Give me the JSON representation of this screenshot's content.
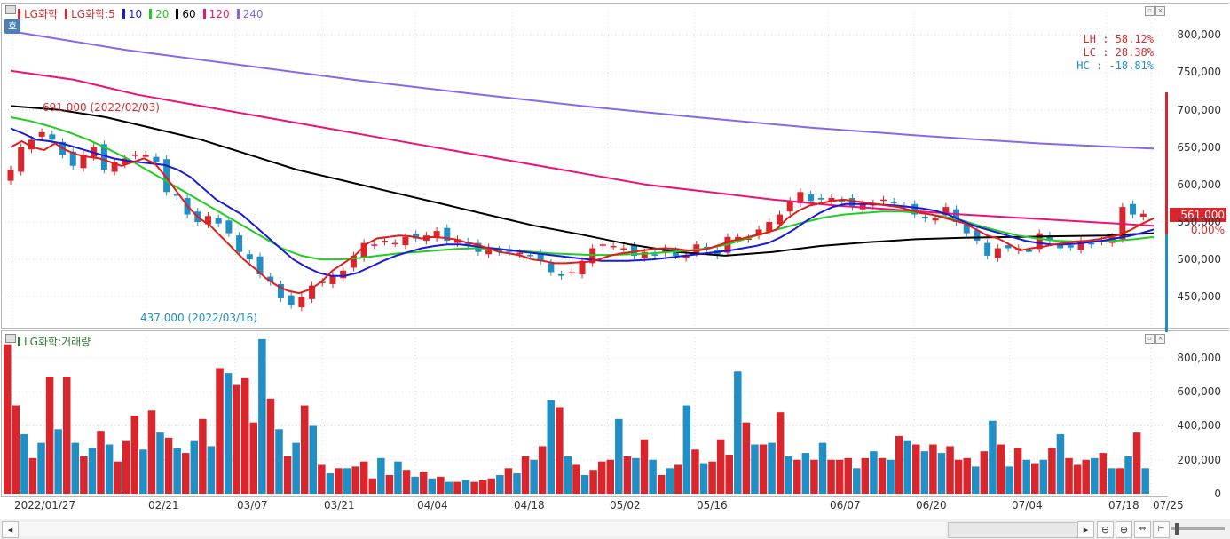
{
  "window": {
    "tab_label": "호",
    "legend_series": [
      {
        "label": "LG화학",
        "color": "#d32f2f"
      },
      {
        "label": "LG화학:5",
        "color": "#d32f2f"
      },
      {
        "label": "10",
        "color": "#1a1adb"
      },
      {
        "label": "20",
        "color": "#22cc22"
      },
      {
        "label": "60",
        "color": "#000000"
      },
      {
        "label": "120",
        "color": "#ee1177"
      },
      {
        "label": "240",
        "color": "#8a66e8"
      }
    ],
    "volume_legend": "LG화학:거래량",
    "stats": {
      "lh": "LH :  58.12%",
      "lc": "LC :  28.38%",
      "hc": "HC : -18.81%"
    },
    "current_price": "561,000",
    "current_change": "0.00%",
    "high_annotation": "691,000 (2022/02/03)",
    "low_annotation": "437,000 (2022/03/16)",
    "colors": {
      "up": "#d8262c",
      "down": "#1f8fc6",
      "background": "#ffffff",
      "grid": "#d9d9d9"
    },
    "scroll_icons": [
      "left-arrow-icon",
      "right-arrow-icon",
      "zoom-out-icon",
      "zoom-in-icon",
      "bar-width-icon",
      "fit-icon"
    ]
  },
  "chart_data": [
    {
      "type": "candlestick",
      "title": "LG화학",
      "y_ticks": [
        "800,000",
        "750,000",
        "700,000",
        "650,000",
        "600,000",
        "550,000",
        "500,000",
        "450,000"
      ],
      "ylim": [
        410000,
        830000
      ],
      "x_ticks": [
        "2022/01/27",
        "02/21",
        "03/07",
        "03/21",
        "04/04",
        "04/18",
        "05/02",
        "05/16",
        "06/07",
        "06/20",
        "07/04",
        "07/18",
        "07/25"
      ],
      "series_names": [
        "LG화학:5",
        "10",
        "20",
        "60",
        "120",
        "240"
      ],
      "close": [
        620000,
        650000,
        660000,
        670000,
        660000,
        640000,
        625000,
        640000,
        650000,
        620000,
        630000,
        635000,
        640000,
        640000,
        630000,
        590000,
        585000,
        560000,
        550000,
        558000,
        548000,
        535000,
        510000,
        500000,
        480000,
        470000,
        448000,
        439000,
        450000,
        465000,
        470000,
        478000,
        485000,
        505000,
        522000,
        520000,
        525000,
        522000,
        530000,
        528000,
        532000,
        538000,
        525000,
        527000,
        518000,
        510000,
        516000,
        510000,
        510000,
        509000,
        505000,
        498000,
        483000,
        478000,
        483000,
        498000,
        515000,
        520000,
        518000,
        515000,
        505000,
        510000,
        505000,
        515000,
        505000,
        505000,
        520000,
        515000,
        505000,
        530000,
        530000,
        528000,
        540000,
        550000,
        560000,
        578000,
        590000,
        578000,
        580000,
        582000,
        578000,
        570000,
        575000,
        575000,
        580000,
        575000,
        570000,
        560000,
        555000,
        555000,
        570000,
        550000,
        535000,
        525000,
        505000,
        515000,
        515000,
        515000,
        510000,
        535000,
        525000,
        515000,
        516000,
        525000,
        520000,
        525000,
        530000,
        570000,
        560000,
        561000
      ],
      "ma5": [
        650000,
        658000,
        650000,
        646000,
        655000,
        646000,
        640000,
        637000,
        635000,
        630000,
        625000,
        630000,
        635000,
        628000,
        610000,
        590000,
        570000,
        555000,
        545000,
        530000,
        515000,
        500000,
        488000,
        475000,
        465000,
        458000,
        455000,
        460000,
        470000,
        485000,
        495000,
        505000,
        520000,
        528000,
        530000,
        532000,
        531000,
        528000,
        530000,
        529000,
        527000,
        523000,
        520000,
        515000,
        510000,
        508000,
        505000,
        500000,
        498000,
        495000,
        495000,
        496000,
        497000,
        500000,
        505000,
        508000,
        510000,
        512000,
        514000,
        515000,
        514000,
        512000,
        512000,
        515000,
        520000,
        525000,
        528000,
        532000,
        535000,
        540000,
        555000,
        565000,
        572000,
        575000,
        578000,
        580000,
        578000,
        576000,
        574000,
        572000,
        570000,
        566000,
        562000,
        560000,
        556000,
        552000,
        548000,
        540000,
        532000,
        528000,
        520000,
        512000,
        515000,
        517000,
        520000,
        522000,
        524000,
        525000,
        527000,
        530000,
        533000,
        540000,
        548000,
        555000
      ],
      "ma10": [
        675000,
        668000,
        660000,
        658000,
        655000,
        650000,
        645000,
        640000,
        635000,
        632000,
        630000,
        628000,
        626000,
        620000,
        610000,
        595000,
        580000,
        570000,
        560000,
        545000,
        530000,
        515000,
        500000,
        490000,
        482000,
        478000,
        478000,
        482000,
        490000,
        498000,
        505000,
        510000,
        515000,
        518000,
        520000,
        520000,
        518000,
        516000,
        514000,
        512000,
        510000,
        508000,
        506000,
        504000,
        502000,
        500000,
        498000,
        498000,
        498000,
        499000,
        500000,
        502000,
        504000,
        506000,
        508000,
        510000,
        512000,
        515000,
        518000,
        522000,
        530000,
        540000,
        552000,
        562000,
        570000,
        574000,
        574000,
        574000,
        573000,
        572000,
        570000,
        568000,
        565000,
        560000,
        552000,
        545000,
        540000,
        535000,
        530000,
        525000,
        522000,
        520000,
        520000,
        521000,
        523000,
        525000,
        528000,
        531000,
        535000,
        540000
      ],
      "ma20": [
        690000,
        685000,
        678000,
        670000,
        660000,
        648000,
        635000,
        620000,
        605000,
        590000,
        575000,
        560000,
        545000,
        530000,
        515000,
        505000,
        500000,
        500000,
        502000,
        505000,
        508000,
        510000,
        512000,
        514000,
        515000,
        514000,
        512000,
        510000,
        508000,
        507000,
        506000,
        506000,
        507000,
        508000,
        510000,
        512000,
        515000,
        520000,
        528000,
        536000,
        543000,
        550000,
        556000,
        560000,
        562000,
        564000,
        564000,
        562000,
        558000,
        553000,
        545000,
        538000,
        532000,
        528000,
        525000,
        524000,
        524000,
        525000,
        527000,
        530000
      ],
      "ma60": [
        705000,
        700000,
        690000,
        675000,
        660000,
        640000,
        620000,
        605000,
        590000,
        575000,
        560000,
        545000,
        533000,
        520000,
        510000,
        505000,
        510000,
        518000,
        523000,
        527000,
        529000,
        530000,
        531000,
        532000,
        535000
      ],
      "ma120": [
        752000,
        740000,
        720000,
        705000,
        690000,
        675000,
        660000,
        645000,
        630000,
        615000,
        600000,
        590000,
        580000,
        572000,
        566000,
        560000,
        555000,
        550000,
        545000
      ],
      "ma240": [
        805000,
        780000,
        760000,
        740000,
        722000,
        705000,
        690000,
        676000,
        665000,
        655000,
        648000
      ]
    },
    {
      "type": "bar",
      "title": "LG화학:거래량",
      "y_ticks": [
        "800,000",
        "600,000",
        "400,000",
        "200,000",
        "0"
      ],
      "ylim": [
        0,
        920000
      ],
      "values": [
        880000,
        520000,
        350000,
        210000,
        300000,
        690000,
        380000,
        690000,
        300000,
        220000,
        270000,
        370000,
        290000,
        190000,
        310000,
        460000,
        260000,
        490000,
        360000,
        330000,
        270000,
        240000,
        310000,
        440000,
        280000,
        740000,
        710000,
        640000,
        680000,
        420000,
        910000,
        560000,
        380000,
        220000,
        300000,
        520000,
        400000,
        170000,
        120000,
        150000,
        150000,
        160000,
        190000,
        90000,
        210000,
        110000,
        190000,
        140000,
        100000,
        130000,
        90000,
        100000,
        70000,
        70000,
        80000,
        70000,
        80000,
        90000,
        110000,
        150000,
        120000,
        220000,
        200000,
        280000,
        550000,
        510000,
        220000,
        170000,
        110000,
        140000,
        190000,
        200000,
        440000,
        220000,
        210000,
        320000,
        200000,
        110000,
        150000,
        170000,
        520000,
        260000,
        180000,
        190000,
        320000,
        230000,
        720000,
        420000,
        290000,
        290000,
        300000,
        480000,
        220000,
        200000,
        240000,
        200000,
        300000,
        200000,
        200000,
        210000,
        150000,
        210000,
        250000,
        210000,
        200000,
        340000,
        310000,
        290000,
        250000,
        290000,
        240000,
        280000,
        200000,
        210000,
        160000,
        250000,
        430000,
        290000,
        160000,
        270000,
        200000,
        180000,
        200000,
        270000,
        350000,
        210000,
        170000,
        200000,
        210000,
        240000,
        150000,
        150000,
        220000,
        360000,
        150000
      ]
    }
  ]
}
